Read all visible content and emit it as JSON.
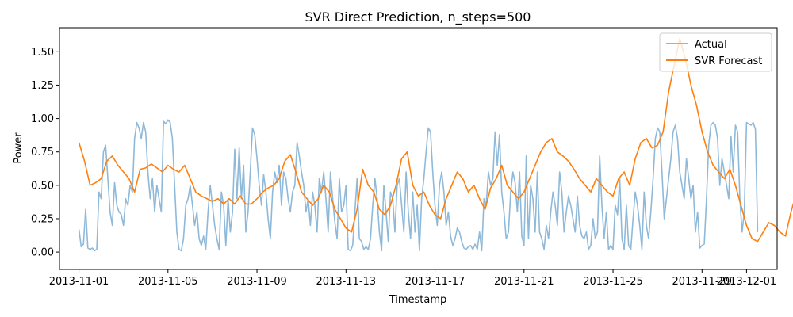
{
  "chart_data": {
    "type": "line",
    "title": "SVR Direct Prediction, n_steps=500",
    "xlabel": "Timestamp",
    "ylabel": "Power",
    "x_start": "2013-11-01",
    "x_end": "2013-12-01",
    "xlim": [
      "2013-10-31T03:00",
      "2013-12-02T09:00"
    ],
    "ylim": [
      -0.13,
      1.68
    ],
    "x_ticks": [
      "2013-11-01",
      "2013-11-05",
      "2013-11-09",
      "2013-11-13",
      "2013-11-17",
      "2013-11-21",
      "2013-11-25",
      "2013-11-29",
      "2013-12-01"
    ],
    "y_ticks": [
      "0.00",
      "0.25",
      "0.50",
      "0.75",
      "1.00",
      "1.25",
      "1.50"
    ],
    "legend_position": "top-right",
    "grid": false,
    "series": [
      {
        "name": "Actual",
        "color": "#8fb9d9",
        "sample_interval_days": 0.1,
        "values": [
          0.17,
          0.04,
          0.06,
          0.32,
          0.03,
          0.02,
          0.03,
          0.01,
          0.02,
          0.45,
          0.4,
          0.75,
          0.8,
          0.55,
          0.3,
          0.2,
          0.52,
          0.35,
          0.3,
          0.28,
          0.2,
          0.4,
          0.35,
          0.5,
          0.45,
          0.85,
          0.97,
          0.93,
          0.85,
          0.97,
          0.9,
          0.6,
          0.4,
          0.55,
          0.3,
          0.5,
          0.4,
          0.3,
          0.98,
          0.96,
          0.99,
          0.97,
          0.85,
          0.5,
          0.15,
          0.02,
          0.01,
          0.1,
          0.35,
          0.4,
          0.5,
          0.35,
          0.2,
          0.3,
          0.1,
          0.05,
          0.12,
          0.02,
          0.3,
          0.5,
          0.35,
          0.2,
          0.1,
          0.02,
          0.45,
          0.35,
          0.05,
          0.4,
          0.15,
          0.3,
          0.77,
          0.4,
          0.78,
          0.4,
          0.65,
          0.15,
          0.3,
          0.6,
          0.93,
          0.88,
          0.7,
          0.5,
          0.35,
          0.58,
          0.45,
          0.25,
          0.1,
          0.45,
          0.6,
          0.52,
          0.65,
          0.35,
          0.6,
          0.55,
          0.4,
          0.3,
          0.45,
          0.5,
          0.82,
          0.72,
          0.6,
          0.5,
          0.3,
          0.4,
          0.2,
          0.45,
          0.35,
          0.15,
          0.55,
          0.45,
          0.6,
          0.4,
          0.15,
          0.6,
          0.4,
          0.22,
          0.1,
          0.55,
          0.3,
          0.35,
          0.5,
          0.02,
          0.01,
          0.05,
          0.3,
          0.55,
          0.1,
          0.08,
          0.02,
          0.04,
          0.02,
          0.1,
          0.35,
          0.55,
          0.4,
          0.15,
          0.01,
          0.5,
          0.3,
          0.08,
          0.45,
          0.4,
          0.15,
          0.5,
          0.55,
          0.35,
          0.15,
          0.6,
          0.3,
          0.1,
          0.45,
          0.15,
          0.35,
          0.01,
          0.4,
          0.55,
          0.75,
          0.93,
          0.9,
          0.6,
          0.35,
          0.2,
          0.5,
          0.6,
          0.45,
          0.2,
          0.3,
          0.12,
          0.05,
          0.1,
          0.18,
          0.15,
          0.08,
          0.03,
          0.02,
          0.04,
          0.05,
          0.02,
          0.06,
          0.02,
          0.15,
          0.01,
          0.4,
          0.35,
          0.6,
          0.5,
          0.55,
          0.9,
          0.65,
          0.88,
          0.45,
          0.3,
          0.1,
          0.15,
          0.45,
          0.6,
          0.52,
          0.3,
          0.6,
          0.12,
          0.05,
          0.72,
          0.1,
          0.5,
          0.4,
          0.15,
          0.6,
          0.15,
          0.1,
          0.02,
          0.2,
          0.1,
          0.3,
          0.45,
          0.35,
          0.2,
          0.6,
          0.45,
          0.15,
          0.3,
          0.42,
          0.35,
          0.25,
          0.15,
          0.42,
          0.2,
          0.12,
          0.1,
          0.15,
          0.02,
          0.05,
          0.25,
          0.1,
          0.15,
          0.72,
          0.35,
          0.1,
          0.3,
          0.02,
          0.05,
          0.02,
          0.35,
          0.28,
          0.55,
          0.1,
          0.02,
          0.35,
          0.05,
          0.02,
          0.25,
          0.45,
          0.35,
          0.2,
          0.02,
          0.45,
          0.2,
          0.1,
          0.3,
          0.55,
          0.85,
          0.93,
          0.9,
          0.6,
          0.25,
          0.4,
          0.55,
          0.7,
          0.9,
          0.95,
          0.85,
          0.6,
          0.5,
          0.4,
          0.7,
          0.55,
          0.4,
          0.5,
          0.15,
          0.3,
          0.03,
          0.05,
          0.06,
          0.4,
          0.8,
          0.95,
          0.97,
          0.95,
          0.85,
          0.5,
          0.7,
          0.6,
          0.5,
          0.4,
          0.87,
          0.6,
          0.95,
          0.9,
          0.4,
          0.15,
          0.3,
          0.97,
          0.96,
          0.95,
          0.97,
          0.92,
          0.15
        ]
      },
      {
        "name": "SVR Forecast",
        "color": "#ff7f0e",
        "sample_interval_days": 0.25,
        "values": [
          0.82,
          0.68,
          0.5,
          0.52,
          0.55,
          0.68,
          0.72,
          0.65,
          0.6,
          0.55,
          0.45,
          0.62,
          0.63,
          0.66,
          0.63,
          0.6,
          0.65,
          0.62,
          0.6,
          0.65,
          0.55,
          0.45,
          0.42,
          0.4,
          0.38,
          0.4,
          0.36,
          0.4,
          0.36,
          0.42,
          0.36,
          0.36,
          0.4,
          0.45,
          0.48,
          0.5,
          0.55,
          0.68,
          0.73,
          0.6,
          0.45,
          0.4,
          0.35,
          0.4,
          0.5,
          0.45,
          0.32,
          0.25,
          0.18,
          0.15,
          0.32,
          0.62,
          0.5,
          0.45,
          0.32,
          0.28,
          0.35,
          0.5,
          0.7,
          0.75,
          0.5,
          0.42,
          0.45,
          0.35,
          0.28,
          0.25,
          0.4,
          0.5,
          0.6,
          0.55,
          0.45,
          0.5,
          0.4,
          0.32,
          0.48,
          0.55,
          0.65,
          0.5,
          0.45,
          0.4,
          0.45,
          0.55,
          0.65,
          0.75,
          0.82,
          0.85,
          0.75,
          0.72,
          0.68,
          0.62,
          0.55,
          0.5,
          0.45,
          0.55,
          0.5,
          0.45,
          0.42,
          0.55,
          0.6,
          0.5,
          0.7,
          0.82,
          0.85,
          0.78,
          0.8,
          0.9,
          1.2,
          1.4,
          1.6,
          1.45,
          1.25,
          1.1,
          0.9,
          0.75,
          0.65,
          0.6,
          0.55,
          0.62,
          0.5,
          0.35,
          0.2,
          0.1,
          0.08,
          0.15,
          0.22,
          0.2,
          0.15,
          0.12,
          0.3,
          0.45,
          0.5,
          0.4,
          0.3,
          0.2,
          0.15,
          0.12,
          0.18,
          0.1,
          0.03,
          0.1,
          0.3,
          0.5,
          0.55,
          0.5,
          0.42,
          0.38,
          0.42,
          0.45,
          0.48,
          0.48,
          0.45,
          0.5,
          0.48,
          0.55,
          0.58,
          0.65,
          0.62,
          0.6,
          0.58,
          0.52,
          0.52,
          0.58,
          0.55,
          0.45,
          0.38,
          0.3,
          0.2,
          0.05,
          -0.04,
          -0.04,
          0.05,
          0.1,
          0.12,
          0.15,
          0.2,
          0.25,
          0.3,
          0.31,
          0.3,
          0.29
        ]
      }
    ]
  }
}
